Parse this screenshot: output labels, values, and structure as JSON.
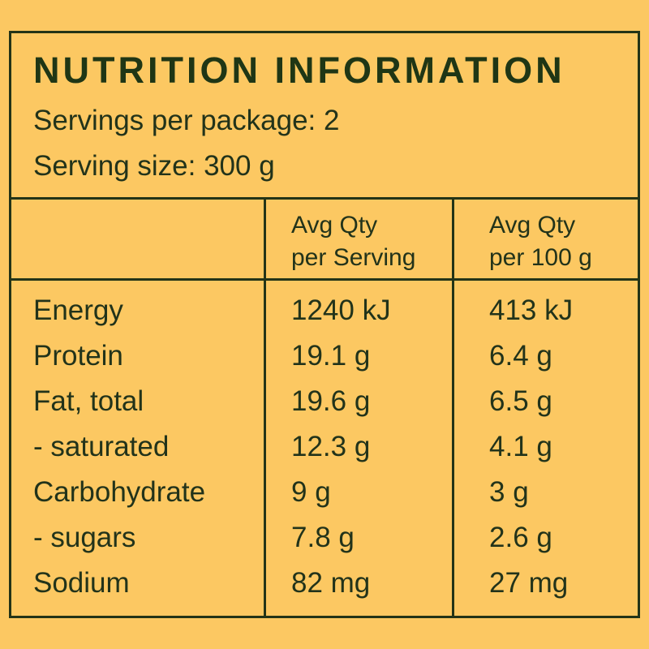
{
  "title": "NUTRITION INFORMATION",
  "servings_per_package": "Servings per package: 2",
  "serving_size": "Serving size: 300 g",
  "columns": {
    "per_serving": [
      "Avg Qty",
      "per Serving"
    ],
    "per_100g": [
      "Avg Qty",
      "per 100 g"
    ]
  },
  "rows": [
    {
      "nutrient": "Energy",
      "per_serving": "1240 kJ",
      "per_100g": "413 kJ"
    },
    {
      "nutrient": "Protein",
      "per_serving": "19.1 g",
      "per_100g": "6.4 g"
    },
    {
      "nutrient": "Fat, total",
      "per_serving": "19.6 g",
      "per_100g": "6.5 g"
    },
    {
      "nutrient": "- saturated",
      "per_serving": "12.3 g",
      "per_100g": "4.1 g"
    },
    {
      "nutrient": "Carbohydrate",
      "per_serving": "9 g",
      "per_100g": "3 g"
    },
    {
      "nutrient": "- sugars",
      "per_serving": "7.8 g",
      "per_100g": "2.6 g"
    },
    {
      "nutrient": "Sodium",
      "per_serving": "82 mg",
      "per_100g": "27 mg"
    }
  ],
  "colors": {
    "background": "#fcc862",
    "border": "#233417",
    "text": "#22331a"
  }
}
